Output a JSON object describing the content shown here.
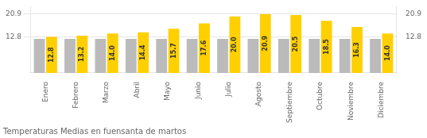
{
  "chart_data": {
    "type": "bar",
    "title": "Temperaturas Medias en fuensanta de martos",
    "categories": [
      "Enero",
      "Febrero",
      "Marzo",
      "Abril",
      "Mayo",
      "Junio",
      "Julio",
      "Agosto",
      "Septiembre",
      "Octubre",
      "Noviembre",
      "Diciembre"
    ],
    "series": [
      {
        "color": "#BBBBBB",
        "values": [
          12.1,
          12.1,
          12.1,
          12.1,
          12.1,
          12.1,
          12.1,
          12.1,
          12.1,
          12.1,
          12.1,
          12.1
        ]
      },
      {
        "color": "#FFD000",
        "values": [
          12.8,
          13.2,
          14.0,
          14.4,
          15.7,
          17.6,
          20.0,
          20.9,
          20.5,
          18.5,
          16.3,
          14.0
        ],
        "value_labels": [
          "12.8",
          "13.2",
          "14.0",
          "14.4",
          "15.7",
          "17.6",
          "20.0",
          "20.9",
          "20.5",
          "18.5",
          "16.3",
          "14.0"
        ],
        "data_labels": true
      }
    ],
    "ylim": [
      0,
      23.5
    ],
    "yticks": [
      12.8,
      20.9
    ],
    "y2lim": [
      0,
      23.5
    ],
    "y2ticks": [
      12.8,
      20.9
    ],
    "grid": true
  }
}
